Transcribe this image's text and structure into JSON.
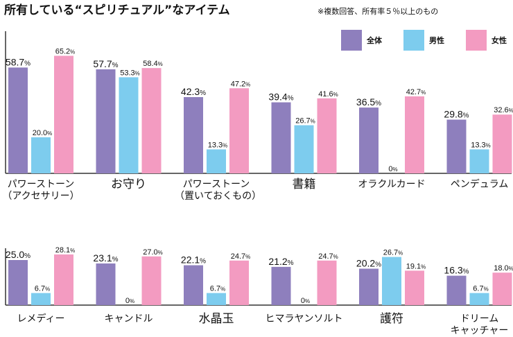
{
  "title": "所有している“スピリチュアル”なアイテム",
  "note": "※複数回答、所有率５％以上のもの",
  "colors": {
    "all": "#8e7fbd",
    "male": "#7dccee",
    "female": "#f39bc1",
    "axis": "#333333"
  },
  "legend": [
    {
      "key": "all",
      "label": "全体"
    },
    {
      "key": "male",
      "label": "男性"
    },
    {
      "key": "female",
      "label": "女性"
    }
  ],
  "chart_data": {
    "type": "bar",
    "unit": "%",
    "series": [
      {
        "name": "全体",
        "key": "all"
      },
      {
        "name": "男性",
        "key": "male"
      },
      {
        "name": "女性",
        "key": "female"
      }
    ],
    "rows": [
      {
        "items": [
          {
            "label": [
              "パワーストーン",
              "（アクセサリー）"
            ],
            "big": false,
            "all": 58.7,
            "male": 20.0,
            "female": 65.2
          },
          {
            "label": [
              "お守り"
            ],
            "big": true,
            "all": 57.7,
            "male": 53.3,
            "female": 58.4
          },
          {
            "label": [
              "パワーストーン",
              "（置いておくもの）"
            ],
            "big": false,
            "all": 42.3,
            "male": 13.3,
            "female": 47.2
          },
          {
            "label": [
              "書籍"
            ],
            "big": true,
            "all": 39.4,
            "male": 26.7,
            "female": 41.6
          },
          {
            "label": [
              "オラクルカード"
            ],
            "big": false,
            "all": 36.5,
            "male": 0,
            "female": 42.7
          },
          {
            "label": [
              "ペンデュラム"
            ],
            "big": false,
            "all": 29.8,
            "male": 13.3,
            "female": 32.6
          }
        ]
      },
      {
        "items": [
          {
            "label": [
              "レメディー"
            ],
            "big": false,
            "all": 25.0,
            "male": 6.7,
            "female": 28.1
          },
          {
            "label": [
              "キャンドル"
            ],
            "big": false,
            "all": 23.1,
            "male": 0,
            "female": 27.0
          },
          {
            "label": [
              "水晶玉"
            ],
            "big": true,
            "all": 22.1,
            "male": 6.7,
            "female": 24.7
          },
          {
            "label": [
              "ヒマラヤンソルト"
            ],
            "big": false,
            "all": 21.2,
            "male": 0,
            "female": 24.7
          },
          {
            "label": [
              "護符"
            ],
            "big": true,
            "all": 20.2,
            "male": 26.7,
            "female": 19.1
          },
          {
            "label": [
              "ドリーム",
              "キャッチャー"
            ],
            "big": false,
            "all": 16.3,
            "male": 6.7,
            "female": 18.0
          }
        ]
      }
    ]
  }
}
